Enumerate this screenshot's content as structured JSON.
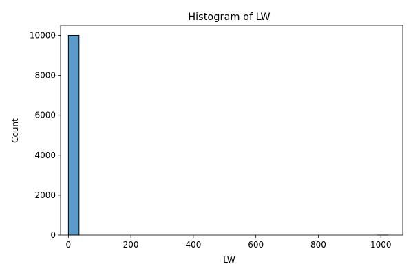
{
  "chart_data": {
    "type": "bar",
    "title": "Histogram of LW",
    "xlabel": "LW",
    "ylabel": "Count",
    "xlim": [
      -25,
      1070
    ],
    "ylim": [
      0,
      10500
    ],
    "xticks": [
      0,
      200,
      400,
      600,
      800,
      1000
    ],
    "yticks": [
      0,
      2000,
      4000,
      6000,
      8000,
      10000
    ],
    "bin_start": 0,
    "bin_width": 34.1,
    "counts": [
      10000,
      0,
      0,
      0,
      0,
      0,
      0,
      0,
      0,
      0,
      0,
      0,
      0,
      0,
      0,
      0,
      0,
      0,
      0,
      0,
      0,
      0,
      0,
      0,
      0,
      0,
      0,
      0,
      0,
      1
    ],
    "grid": false,
    "colors": {
      "bar_fill": "#5b9bc9",
      "bar_edge": "#000000"
    }
  }
}
